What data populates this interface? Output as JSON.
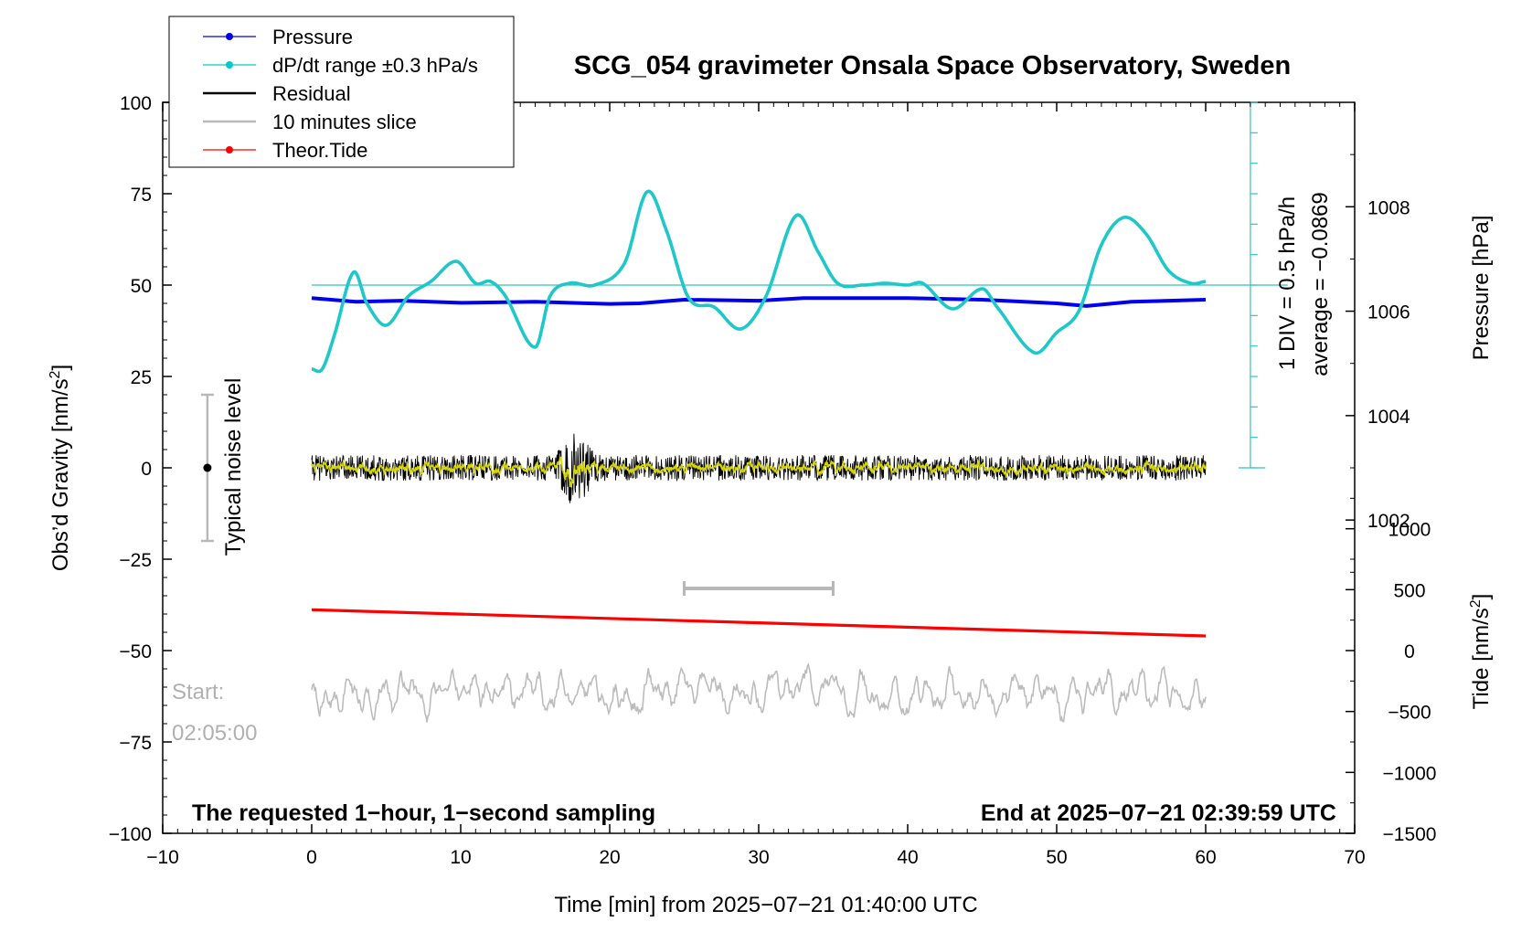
{
  "chart_data": {
    "type": "line",
    "title": "SCG_054 gravimeter Onsala Space Observatory, Sweden",
    "xlabel": "Time [min] from 2025−07−21 01:40:00 UTC",
    "ylabel_left": "Obs’d Gravity [nm/s",
    "ylabel_left_sup": "2",
    "ylabel_left_end": "]",
    "ylabel_right_pressure": "Pressure [hPa]",
    "ylabel_right_tide": "Tide [nm/s",
    "ylabel_right_tide_sup": "2",
    "ylabel_right_tide_end": "]",
    "xlim": [
      -10,
      70
    ],
    "ylim_left": [
      -100,
      100
    ],
    "ylim_pressure": [
      996,
      1010
    ],
    "ylim_tide": [
      -1500,
      4500
    ],
    "x_ticks": [
      "−10",
      "0",
      "10",
      "20",
      "30",
      "40",
      "50",
      "60",
      "70"
    ],
    "x_tick_values": [
      -10,
      0,
      10,
      20,
      30,
      40,
      50,
      60,
      70
    ],
    "y_left_ticks": [
      "100",
      "75",
      "50",
      "25",
      "0",
      "−25",
      "−50",
      "−75",
      "−100"
    ],
    "y_left_tick_values": [
      100,
      75,
      50,
      25,
      0,
      -25,
      -50,
      -75,
      -100
    ],
    "pressure_ticks": [
      "1008",
      "1006",
      "1004",
      "1002"
    ],
    "pressure_tick_values": [
      1008,
      1006,
      1004,
      1002
    ],
    "tide_ticks": [
      "1000",
      "500",
      "0",
      "−500",
      "−1000",
      "−1500"
    ],
    "tide_tick_values": [
      1000,
      500,
      0,
      -500,
      -1000,
      -1500
    ],
    "legend": [
      {
        "label": "Pressure",
        "color": "#0000ee",
        "marker": true
      },
      {
        "label": "dP/dt range ±0.3 hPa/s",
        "color": "#00cccc",
        "marker": true
      },
      {
        "label": "Residual",
        "color": "#000000",
        "marker": false
      },
      {
        "label": "10 minutes slice",
        "color": "#b8b8b8",
        "marker": false
      },
      {
        "label": "Theor.Tide",
        "color": "#ff0000",
        "marker": true
      }
    ],
    "series": [
      {
        "name": "Pressure",
        "color": "#0000ee",
        "axis": "pressure",
        "x": [
          0,
          3,
          6,
          10,
          15,
          20,
          22,
          25,
          30,
          33,
          40,
          45,
          50,
          52,
          55,
          60
        ],
        "values": [
          1006.25,
          1006.18,
          1006.2,
          1006.16,
          1006.18,
          1006.14,
          1006.15,
          1006.22,
          1006.2,
          1006.25,
          1006.25,
          1006.22,
          1006.15,
          1006.1,
          1006.18,
          1006.22
        ]
      },
      {
        "name": "dP/dt",
        "color": "#1ec8c8",
        "axis": "left",
        "x": [
          0,
          0.7,
          1.5,
          2.8,
          3.7,
          5,
          6.5,
          8,
          9.7,
          11,
          12,
          13,
          15,
          16,
          17.3,
          19,
          21,
          22.5,
          23.8,
          25.3,
          27,
          28.8,
          30.5,
          32.5,
          34,
          35.3,
          37,
          38.5,
          40,
          41,
          43,
          45,
          46,
          48.5,
          50,
          51.5,
          53,
          54.5,
          56,
          57.5,
          59,
          60
        ],
        "values": [
          27,
          27,
          36,
          53.5,
          45,
          39,
          47,
          51,
          56.5,
          50.5,
          51,
          47,
          33,
          47,
          50.5,
          50,
          56,
          75.5,
          65,
          46.5,
          44,
          38,
          47,
          69,
          59,
          50.5,
          50,
          50.5,
          50,
          50.5,
          43.5,
          49,
          44,
          31.5,
          37,
          43,
          61,
          68.5,
          64,
          54,
          50.5,
          51
        ]
      },
      {
        "name": "Theor.Tide",
        "color": "#ff0000",
        "axis": "tide",
        "x": [
          0,
          60
        ],
        "values": [
          335,
          120
        ]
      }
    ],
    "residual": {
      "center": 0,
      "amplitude_nm_s2": 3.5,
      "burst_at_min": 17.7,
      "burst_amplitude_nm_s2": 11
    },
    "dpdt_reference_line": 50,
    "dpdt_annotation": "1 DIV = 0.5 hPa/h",
    "average_annotation": "average = −0.0869",
    "noise_label": "Typical noise level",
    "noise_bar": {
      "x": -7,
      "low": -20,
      "high": 20,
      "center": 0
    },
    "slice_bar": {
      "x_start": 25,
      "x_end": 35,
      "y": -33
    },
    "slice_trace": {
      "center": -62,
      "amplitude": 5
    },
    "start_label": "Start:",
    "start_time": "02:05:00",
    "note_left": "The requested 1−hour, 1−second sampling",
    "note_right": "End at 2025−07−21 02:39:59 UTC"
  }
}
